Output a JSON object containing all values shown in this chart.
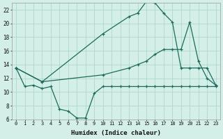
{
  "xlabel": "Humidex (Indice chaleur)",
  "bg_color": "#d4eee8",
  "grid_color": "#b0d8cc",
  "line_color": "#1a6b5a",
  "xlim": [
    -0.5,
    23.5
  ],
  "ylim": [
    6,
    23
  ],
  "yticks": [
    6,
    8,
    10,
    12,
    14,
    16,
    18,
    20,
    22
  ],
  "xticks": [
    0,
    1,
    2,
    3,
    4,
    5,
    6,
    7,
    8,
    9,
    10,
    11,
    12,
    13,
    14,
    15,
    16,
    17,
    18,
    19,
    20,
    21,
    22,
    23
  ],
  "s1_x": [
    0,
    1,
    2,
    3,
    4,
    5,
    6,
    7,
    8,
    9,
    10,
    11,
    12,
    13,
    14,
    15,
    16,
    17,
    18,
    19,
    20,
    21,
    22,
    23
  ],
  "s1_y": [
    13.5,
    10.8,
    11.0,
    10.5,
    10.8,
    7.5,
    7.2,
    6.2,
    6.2,
    9.8,
    10.8,
    10.8,
    10.8,
    10.8,
    10.8,
    10.8,
    10.8,
    10.8,
    10.8,
    10.8,
    10.8,
    10.8,
    10.8,
    10.8
  ],
  "s2_x": [
    0,
    3,
    10,
    13,
    14,
    15,
    16,
    17,
    18,
    19,
    20,
    21,
    22,
    23
  ],
  "s2_y": [
    13.5,
    11.5,
    18.5,
    21.0,
    21.5,
    23.2,
    23.0,
    21.5,
    20.2,
    13.5,
    13.5,
    13.5,
    13.5,
    11.0
  ],
  "s3_x": [
    0,
    3,
    10,
    13,
    14,
    15,
    16,
    17,
    18,
    19,
    20,
    21,
    22,
    23
  ],
  "s3_y": [
    13.5,
    11.5,
    12.5,
    13.5,
    14.0,
    14.5,
    15.5,
    16.2,
    16.2,
    16.2,
    20.2,
    14.5,
    12.0,
    11.0
  ]
}
